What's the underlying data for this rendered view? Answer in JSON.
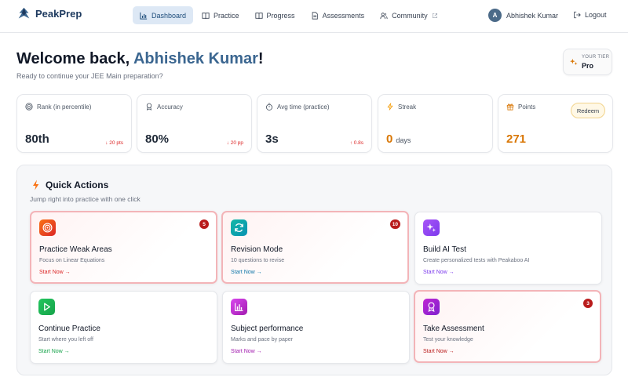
{
  "app": {
    "name": "PeakPrep"
  },
  "nav": {
    "items": [
      {
        "label": "Dashboard"
      },
      {
        "label": "Practice"
      },
      {
        "label": "Progress"
      },
      {
        "label": "Assessments"
      },
      {
        "label": "Community"
      }
    ]
  },
  "user": {
    "initial": "A",
    "name": "Abhishek Kumar",
    "logout_label": "Logout"
  },
  "welcome": {
    "prefix": "Welcome back, ",
    "name": "Abhishek Kumar",
    "suffix": "!",
    "subtitle": "Ready to continue your JEE Main preparation?"
  },
  "tier": {
    "label": "YOUR TIER",
    "value": "Pro"
  },
  "stats": [
    {
      "label": "Rank (in percentile)",
      "value": "80th",
      "delta": "↓ 20 pts",
      "icon": "target-icon"
    },
    {
      "label": "Accuracy",
      "value": "80%",
      "delta": "↓ 20 pp",
      "icon": "award-icon"
    },
    {
      "label": "Avg time (practice)",
      "value": "3s",
      "delta": "↑ 0.8s",
      "icon": "timer-icon"
    },
    {
      "label": "Streak",
      "value": "0",
      "unit": "days",
      "icon": "bolt-icon"
    },
    {
      "label": "Points",
      "value": "271",
      "action": "Redeem",
      "icon": "gift-icon"
    }
  ],
  "quick_actions": {
    "title": "Quick Actions",
    "subtitle": "Jump right into practice with one click",
    "cards": [
      {
        "title": "Practice Weak Areas",
        "desc": "Focus on Linear Equations",
        "link": "Start Now →",
        "badge": "5",
        "icon": "target-icon"
      },
      {
        "title": "Revision Mode",
        "desc": "10 questions to revise",
        "link": "Start Now →",
        "badge": "10",
        "icon": "refresh-icon"
      },
      {
        "title": "Build AI Test",
        "desc": "Create personalized tests with Peakaboo AI",
        "link": "Start Now →",
        "icon": "sparkles-icon"
      },
      {
        "title": "Continue Practice",
        "desc": "Start where you left off",
        "link": "Start Now →",
        "icon": "play-icon"
      },
      {
        "title": "Subject performance",
        "desc": "Marks and pace by paper",
        "link": "Start Now →",
        "icon": "bar-chart-icon"
      },
      {
        "title": "Take Assessment",
        "desc": "Test your knowledge",
        "link": "Start Now →",
        "badge": "3",
        "icon": "award-icon"
      }
    ]
  },
  "colors": {
    "brand": "#1e3a5f",
    "accent": "#3b6690",
    "danger": "#b91c1c",
    "points": "#d97706"
  }
}
